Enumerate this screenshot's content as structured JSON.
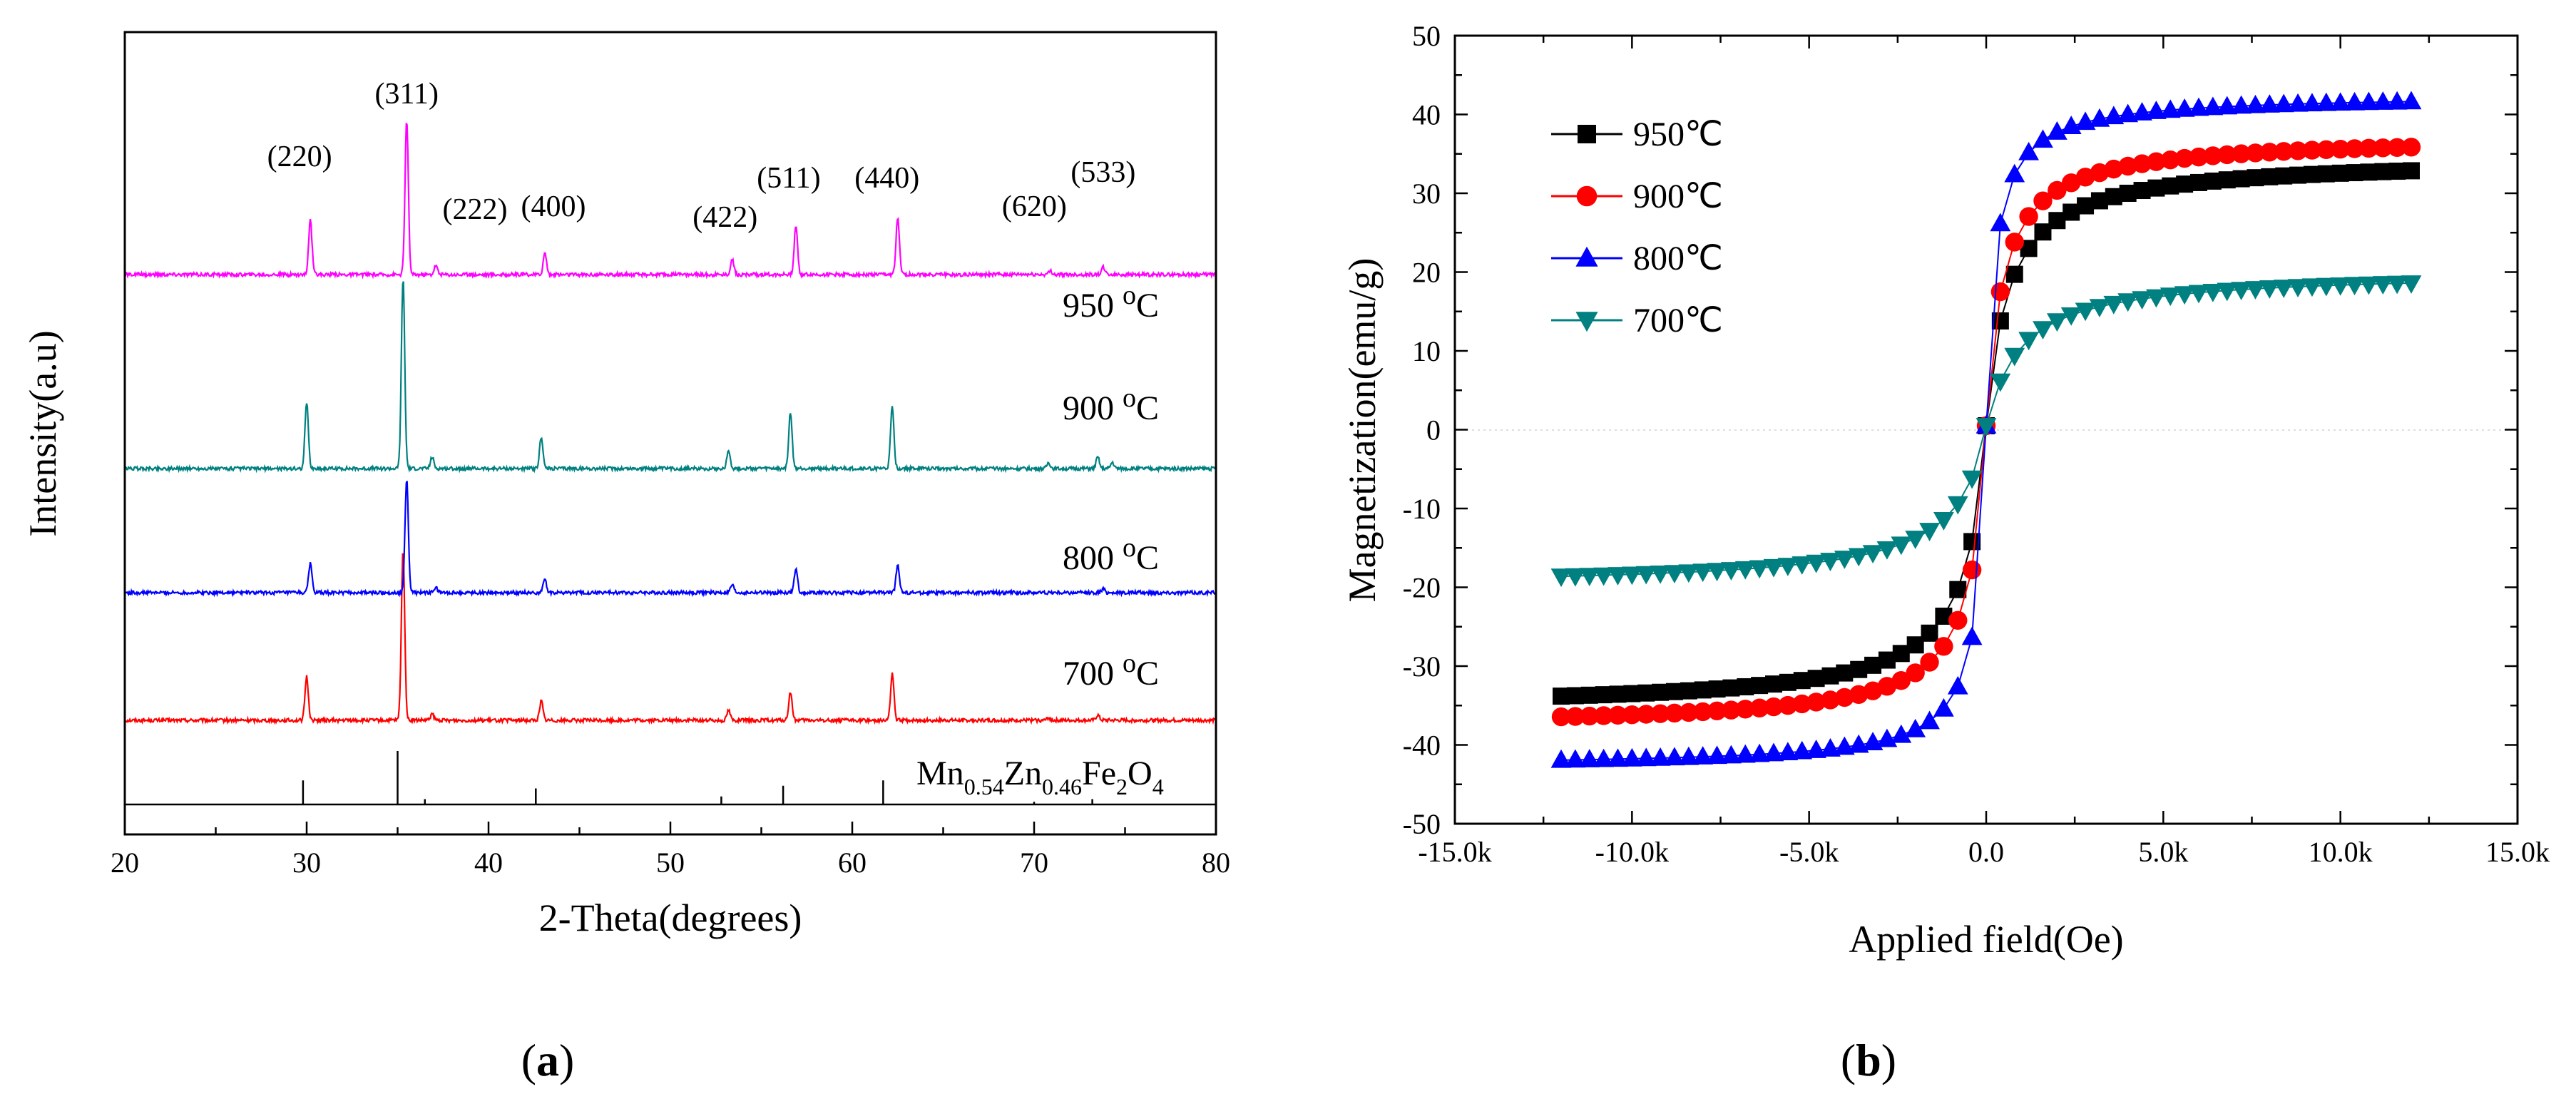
{
  "chart_data": [
    {
      "type": "line",
      "panel": "(a)",
      "panel_letter": "a",
      "title": "",
      "xlabel": "2-Theta(degrees)",
      "ylabel": "Intensity(a.u)",
      "xlim": [
        20,
        80
      ],
      "xticks": [
        20,
        30,
        40,
        50,
        60,
        70,
        80
      ],
      "grid": false,
      "offset_units": {
        "baseline_per_step": 1.35,
        "step_per_curve": 1.0
      },
      "series": [
        {
          "name": "700 oC",
          "temp": "700",
          "color": "#ff0000",
          "peaks": [
            [
              30.0,
              0.85
            ],
            [
              35.3,
              3.3
            ],
            [
              36.9,
              0.12
            ],
            [
              42.9,
              0.38
            ],
            [
              53.2,
              0.2
            ],
            [
              56.6,
              0.55
            ],
            [
              62.2,
              0.9
            ],
            [
              70.8,
              0.05
            ],
            [
              73.5,
              0.1
            ]
          ]
        },
        {
          "name": "800 oC",
          "temp": "800",
          "color": "#0000ff",
          "peaks": [
            [
              30.2,
              0.58
            ],
            [
              35.5,
              2.2
            ],
            [
              37.1,
              0.1
            ],
            [
              43.1,
              0.25
            ],
            [
              53.4,
              0.15
            ],
            [
              56.9,
              0.45
            ],
            [
              62.5,
              0.55
            ],
            [
              73.8,
              0.07
            ]
          ]
        },
        {
          "name": "900 oC",
          "temp": "900",
          "color": "#008080",
          "peaks": [
            [
              30.0,
              1.3
            ],
            [
              35.3,
              3.7
            ],
            [
              36.9,
              0.22
            ],
            [
              42.9,
              0.62
            ],
            [
              53.2,
              0.35
            ],
            [
              56.6,
              1.1
            ],
            [
              62.2,
              1.2
            ],
            [
              70.8,
              0.12
            ],
            [
              73.5,
              0.22
            ],
            [
              74.3,
              0.12
            ]
          ]
        },
        {
          "name": "950 oC",
          "temp": "950",
          "color": "#ff00ff",
          "peaks": [
            [
              30.2,
              1.05
            ],
            [
              35.5,
              3.0
            ],
            [
              37.1,
              0.18
            ],
            [
              43.1,
              0.42
            ],
            [
              53.4,
              0.3
            ],
            [
              56.9,
              0.95
            ],
            [
              62.5,
              1.1
            ],
            [
              70.9,
              0.07
            ],
            [
              73.8,
              0.15
            ]
          ]
        }
      ],
      "temp_label_suffix": "oC",
      "hkl_annotations": [
        {
          "label": "(220)",
          "x": 30.2
        },
        {
          "label": "(311)",
          "x": 35.5
        },
        {
          "label": "(222)",
          "x": 37.1
        },
        {
          "label": "(400)",
          "x": 43.1
        },
        {
          "label": "(422)",
          "x": 53.4
        },
        {
          "label": "(511)",
          "x": 56.9
        },
        {
          "label": "(440)",
          "x": 62.5
        },
        {
          "label": "(620)",
          "x": 70.8
        },
        {
          "label": "(533)",
          "x": 73.8
        }
      ],
      "reference": {
        "name": "Mn0.54Zn0.46Fe2O4",
        "formula_parts": [
          "Mn",
          "0.54",
          "Zn",
          "0.46",
          "Fe",
          "2",
          "O",
          "4"
        ],
        "lines": [
          [
            29.8,
            0.45
          ],
          [
            35.0,
            1.0
          ],
          [
            36.5,
            0.1
          ],
          [
            42.6,
            0.3
          ],
          [
            52.8,
            0.15
          ],
          [
            56.2,
            0.35
          ],
          [
            61.7,
            0.45
          ],
          [
            70.0,
            0.05
          ],
          [
            73.2,
            0.1
          ]
        ]
      }
    },
    {
      "type": "scatter",
      "panel": "(b)",
      "panel_letter": "b",
      "title": "",
      "xlabel": "Applied field(Oe)",
      "ylabel": "Magnetization(emu/g)",
      "xlim": [
        -15000,
        15000
      ],
      "ylim": [
        -50,
        50
      ],
      "xticks": [
        -15000,
        -10000,
        -5000,
        0,
        5000,
        10000,
        15000
      ],
      "xtick_labels": [
        "-15.0k",
        "-10.0k",
        "-5.0k",
        "0.0",
        "5.0k",
        "10.0k",
        "15.0k"
      ],
      "yticks": [
        -50,
        -40,
        -30,
        -20,
        -10,
        0,
        10,
        20,
        30,
        40,
        50
      ],
      "grid": false,
      "legend_position": "top-left",
      "series": [
        {
          "name": "950℃",
          "color": "#000000",
          "marker": "square",
          "Ms": 34.5,
          "neg_sat": 35.5,
          "Hk": 600
        },
        {
          "name": "900℃",
          "color": "#ff0000",
          "marker": "circle",
          "Ms": 37.2,
          "neg_sat": 37.8,
          "Hk": 450
        },
        {
          "name": "800℃",
          "color": "#0000ff",
          "marker": "triangle-up",
          "Ms": 42.5,
          "neg_sat": 42.8,
          "Hk": 250
        },
        {
          "name": "700℃",
          "color": "#008080",
          "marker": "triangle-down",
          "Ms": 20.0,
          "neg_sat": 20.0,
          "Hk": 900
        }
      ]
    }
  ]
}
